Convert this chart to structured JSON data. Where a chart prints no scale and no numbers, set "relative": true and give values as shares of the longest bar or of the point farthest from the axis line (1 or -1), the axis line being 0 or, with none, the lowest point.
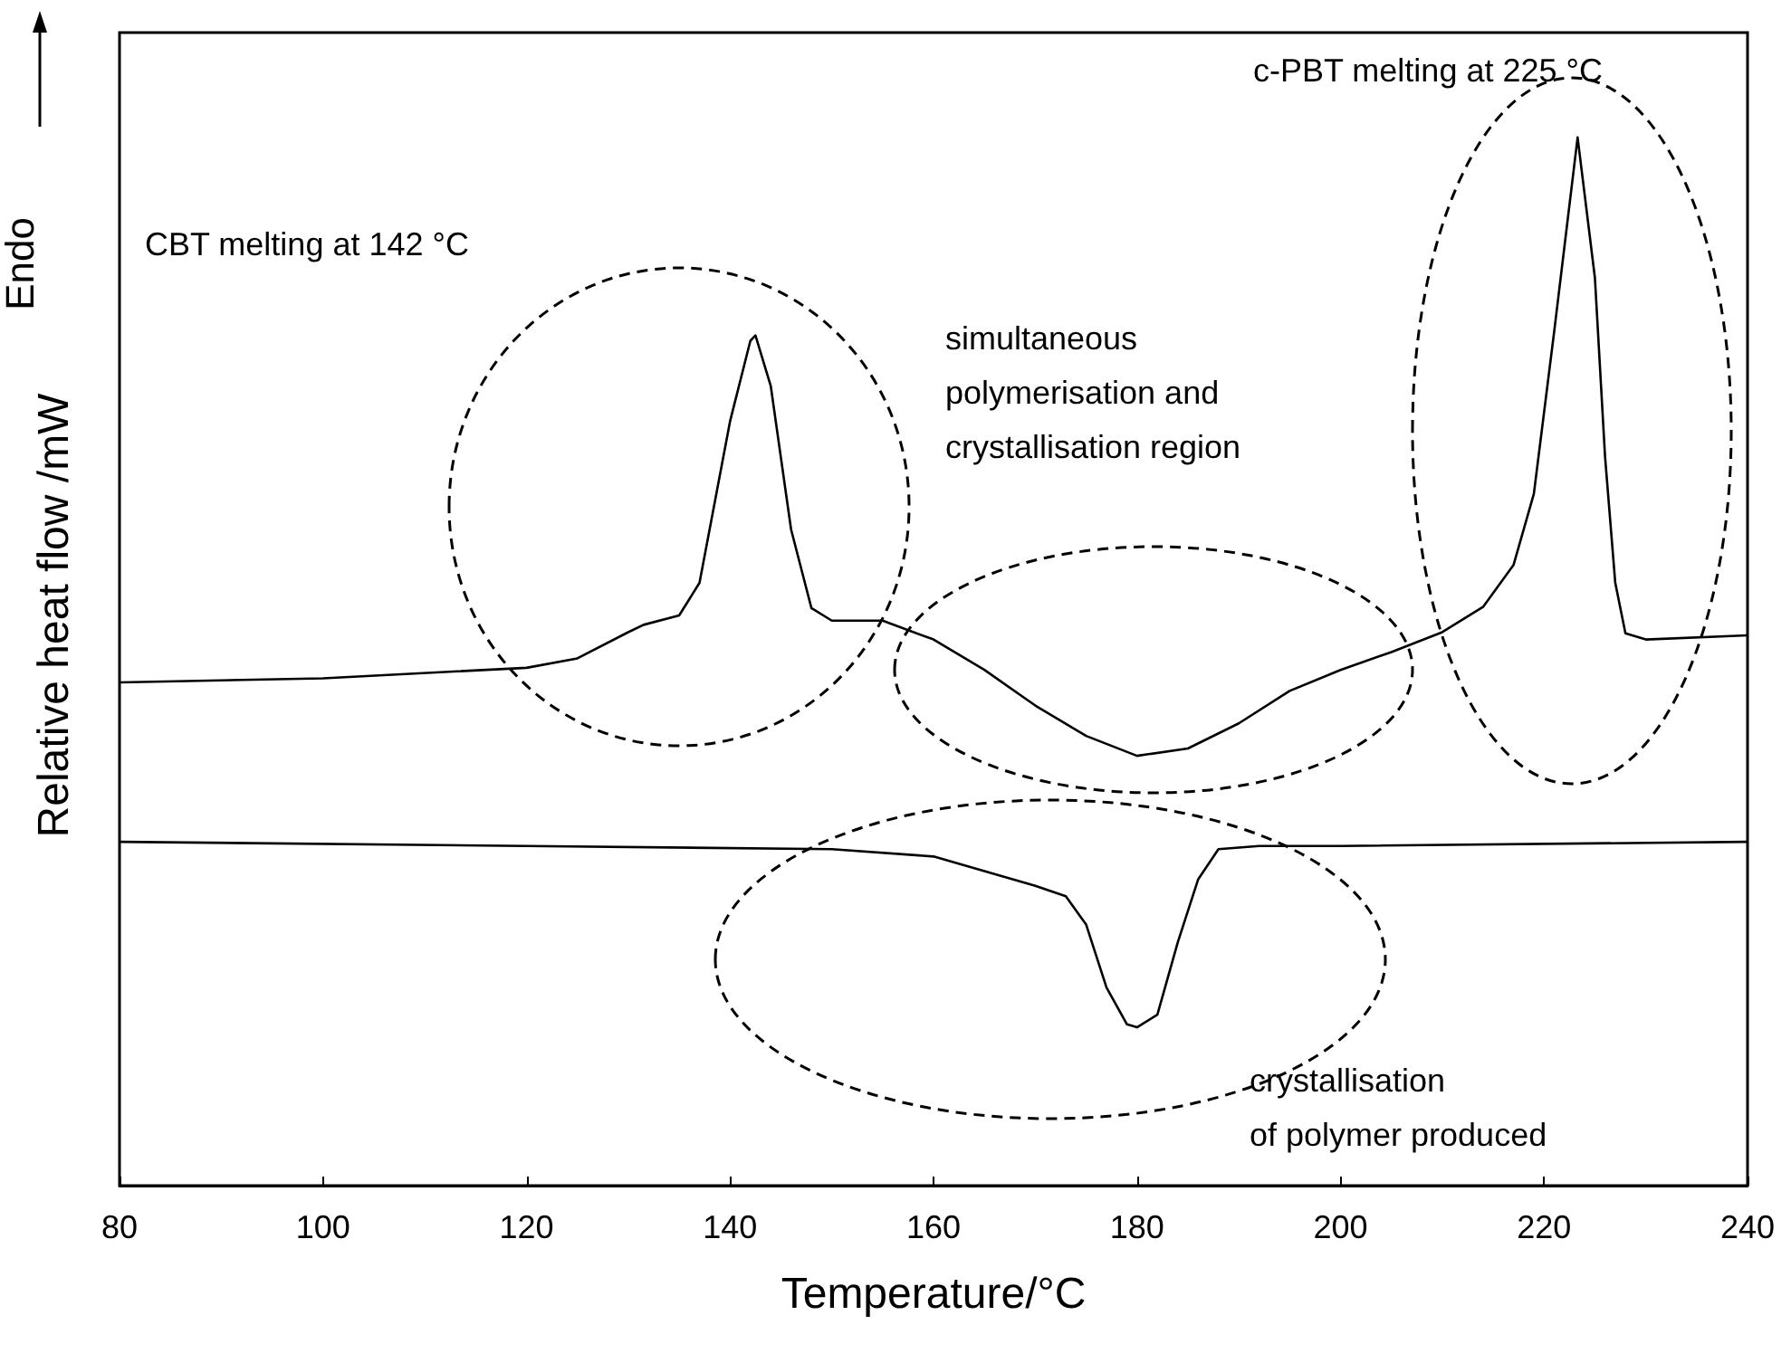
{
  "chart_data": {
    "type": "line",
    "relative": true,
    "xlabel": "Temperature/°C",
    "ylabel": "Relative heat flow /mW",
    "xlim": [
      80,
      240
    ],
    "xticks": [
      80,
      100,
      120,
      140,
      160,
      180,
      200,
      220,
      240
    ],
    "grid": false,
    "marker": "none",
    "line_style": "solid",
    "annotations": [
      "CBT melting at 142 °C",
      "c-PBT melting at 225 °C",
      "simultaneous\npolymerisation and\ncrystallisation region",
      "crystallisation\nof polymer produced",
      "Endo"
    ],
    "series": [
      {
        "color": "#000000",
        "x": [
          80,
          100,
          120,
          125,
          130,
          131.5,
          135,
          137,
          140,
          142,
          142.5,
          144,
          146,
          148,
          150,
          155,
          160,
          165,
          170,
          175,
          180,
          185,
          190,
          195,
          200,
          205,
          210,
          214,
          217,
          219,
          221,
          223.3,
          225,
          226,
          227,
          228,
          230,
          240
        ],
        "values": [
          0.48,
          0.484,
          0.494,
          0.503,
          0.528,
          0.535,
          0.544,
          0.575,
          0.729,
          0.806,
          0.811,
          0.763,
          0.626,
          0.551,
          0.539,
          0.539,
          0.521,
          0.492,
          0.458,
          0.429,
          0.41,
          0.417,
          0.441,
          0.472,
          0.492,
          0.509,
          0.528,
          0.552,
          0.592,
          0.66,
          0.815,
          1.0,
          0.866,
          0.695,
          0.575,
          0.527,
          0.521,
          0.525
        ]
      },
      {
        "color": "#000000",
        "x": [
          80,
          120,
          150,
          160,
          165,
          170,
          173,
          175,
          177,
          179,
          180,
          182,
          184,
          186,
          188,
          192,
          200,
          240
        ],
        "values": [
          0.328,
          0.324,
          0.321,
          0.314,
          0.3,
          0.286,
          0.276,
          0.249,
          0.189,
          0.154,
          0.151,
          0.163,
          0.232,
          0.292,
          0.321,
          0.324,
          0.324,
          0.328
        ]
      }
    ]
  }
}
